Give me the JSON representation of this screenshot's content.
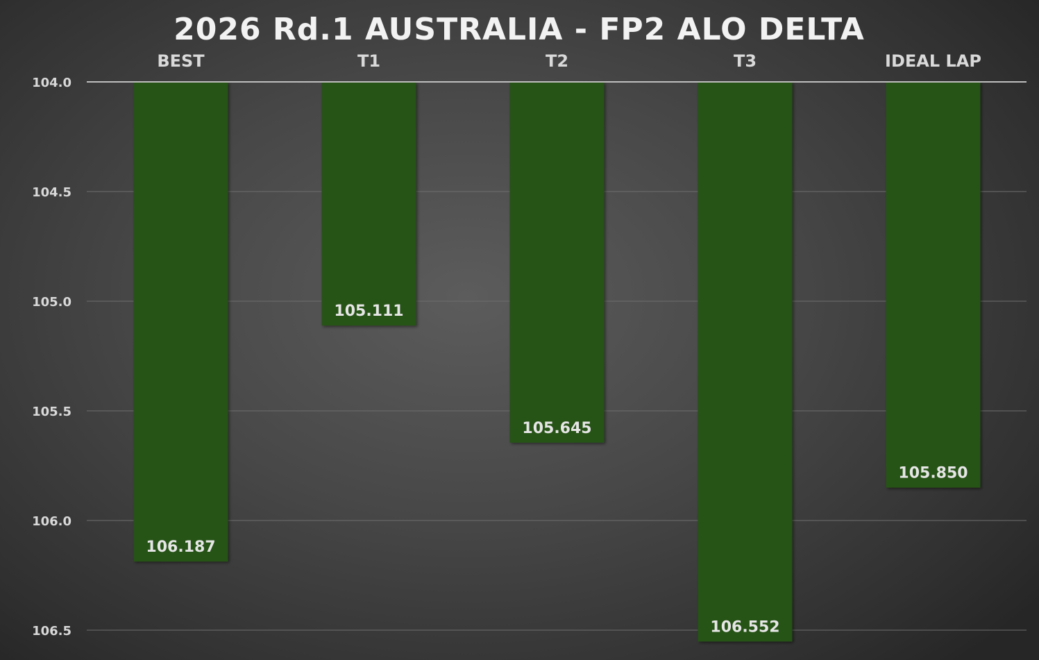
{
  "chart_data": {
    "type": "bar",
    "title": "2026 Rd.1 AUSTRALIA - FP2 ALO DELTA",
    "categories": [
      "BEST",
      "T1",
      "T2",
      "T3",
      "IDEAL LAP"
    ],
    "values": [
      106.187,
      105.111,
      105.645,
      106.552,
      105.85
    ],
    "value_labels": [
      "106.187",
      "105.111",
      "105.645",
      "106.552",
      "105.850"
    ],
    "y_ticks": [
      "104.0",
      "104.5",
      "105.0",
      "105.5",
      "106.0",
      "106.5"
    ],
    "ylim": [
      104.0,
      106.5
    ],
    "y_axis_inverted": true,
    "category_axis_position": "top",
    "grid": true,
    "legend": "none",
    "bar_color": "#285319",
    "xlabel": "",
    "ylabel": ""
  }
}
